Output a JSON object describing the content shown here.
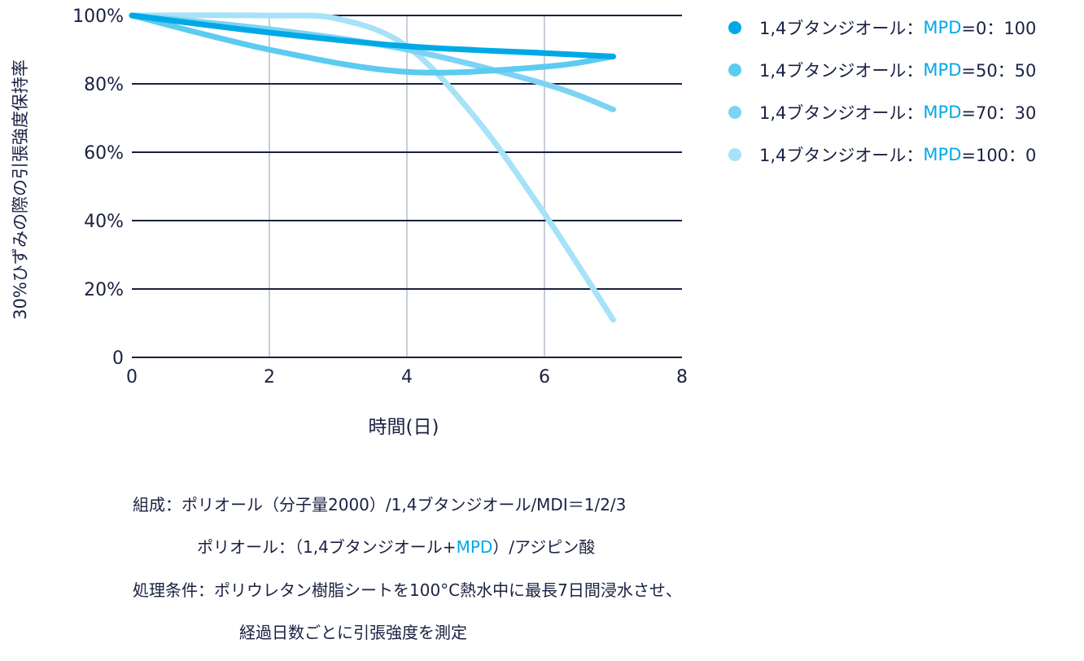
{
  "chart_data": {
    "type": "line",
    "title": "",
    "xlabel": "時間(日)",
    "ylabel": "30%ひずみの際の引張強度保持率",
    "xlim": [
      0,
      8
    ],
    "ylim": [
      0,
      100
    ],
    "x_ticks": [
      "0",
      "2",
      "4",
      "6",
      "8"
    ],
    "y_ticks": [
      "0",
      "20%",
      "40%",
      "60%",
      "80%",
      "100%"
    ],
    "grid": {
      "horizontal": true,
      "vertical": true
    },
    "legend_position": "right",
    "series": [
      {
        "name": "1,4ブタンジオール：MPD=0：100",
        "color": "#00a9e6",
        "x": [
          0,
          2,
          4,
          6,
          7
        ],
        "values": [
          100,
          95,
          91,
          89,
          88
        ]
      },
      {
        "name": "1,4ブタンジオール：MPD=50：50",
        "color": "#5ccbf0",
        "x": [
          0,
          2,
          4,
          6,
          7
        ],
        "values": [
          100,
          90,
          83.5,
          85,
          88
        ]
      },
      {
        "name": "1,4ブタンジオール：MPD=70：30",
        "color": "#7dd3f3",
        "x": [
          0,
          2,
          4,
          6,
          7
        ],
        "values": [
          100,
          96,
          90,
          80,
          72.5
        ]
      },
      {
        "name": "1,4ブタンジオール：MPD=100：0",
        "color": "#a6e2f8",
        "x": [
          0,
          2,
          3,
          4,
          5,
          6,
          7
        ],
        "values": [
          100,
          100,
          99,
          91,
          70,
          42,
          11
        ]
      }
    ]
  },
  "legend": {
    "items": [
      {
        "prefix": "1,4ブタンジオール：",
        "accent": "MPD",
        "suffix": "=0：100",
        "color": "#00a9e6"
      },
      {
        "prefix": "1,4ブタンジオール：",
        "accent": "MPD",
        "suffix": "=50：50",
        "color": "#5ccbf0"
      },
      {
        "prefix": "1,4ブタンジオール：",
        "accent": "MPD",
        "suffix": "=70：30",
        "color": "#7dd3f3"
      },
      {
        "prefix": "1,4ブタンジオール：",
        "accent": "MPD",
        "suffix": "=100：0",
        "color": "#a6e2f8"
      }
    ]
  },
  "notes": {
    "line1": "組成：ポリオール（分子量2000）/1,4ブタンジオール/MDI＝1/2/3",
    "line2_prefix": "ポリオール：（1,4ブタンジオール+",
    "line2_accent": "MPD",
    "line2_suffix": "）/アジピン酸",
    "line3": "処理条件：ポリウレタン樹脂シートを100°C熱水中に最長7日間浸水させ、",
    "line4": "経過日数ごとに引張強度を測定"
  },
  "colors": {
    "text": "#1a2142",
    "axis": "#1a2142",
    "vgrid": "#c8ced8",
    "accent": "#00a9e6"
  }
}
